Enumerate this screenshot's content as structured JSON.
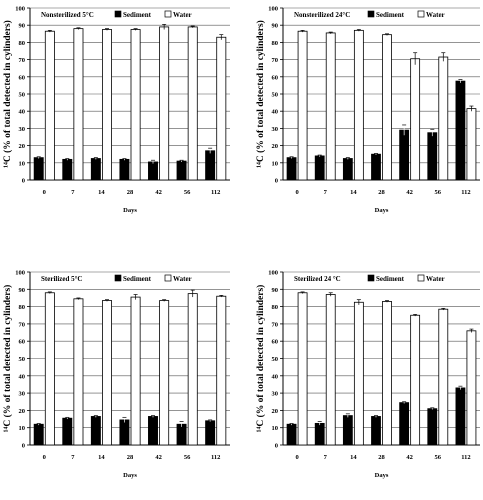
{
  "figure": {
    "y_axis_label": "¹⁴C (% of total detected in cylinders)",
    "x_axis_label": "Days",
    "legend": {
      "sediment": "Sediment",
      "water": "Water"
    }
  },
  "chart_data": [
    {
      "type": "bar",
      "title": "Nonsterilized 5°C",
      "categories": [
        "0",
        "7",
        "14",
        "28",
        "42",
        "56",
        "112"
      ],
      "series": [
        {
          "name": "Sediment",
          "values": [
            13,
            12,
            12.5,
            12,
            10.5,
            11,
            17
          ],
          "errors": [
            0.5,
            0.5,
            0.5,
            0.5,
            1,
            0.5,
            1.5
          ]
        },
        {
          "name": "Water",
          "values": [
            86.5,
            88,
            87.5,
            87.5,
            89,
            89,
            83
          ],
          "errors": [
            0.5,
            0.5,
            0.5,
            0.5,
            1.5,
            0.5,
            1.5
          ]
        }
      ],
      "xlabel": "Days",
      "ylabel": "¹⁴C (% of total detected in cylinders)",
      "ylim": [
        0,
        100
      ],
      "yticks": [
        0,
        10,
        20,
        30,
        40,
        50,
        60,
        70,
        80,
        90,
        100
      ],
      "grid": true,
      "legend_position": "top-right"
    },
    {
      "type": "bar",
      "title": "Nonsterilized 24°C",
      "categories": [
        "0",
        "7",
        "14",
        "28",
        "42",
        "56",
        "112"
      ],
      "series": [
        {
          "name": "Sediment",
          "values": [
            13,
            14,
            12.5,
            15,
            29,
            27.5,
            57.5
          ],
          "errors": [
            0.5,
            0.5,
            0.5,
            0.5,
            3,
            2,
            1
          ]
        },
        {
          "name": "Water",
          "values": [
            86.5,
            85.5,
            87,
            84.5,
            70.5,
            71.5,
            41.5
          ],
          "errors": [
            0.5,
            0.5,
            0.5,
            0.5,
            3.5,
            2.5,
            1.5
          ]
        }
      ],
      "xlabel": "Days",
      "ylabel": "¹⁴C (% of total detected in cylinders)",
      "ylim": [
        0,
        100
      ],
      "yticks": [
        0,
        10,
        20,
        30,
        40,
        50,
        60,
        70,
        80,
        90,
        100
      ],
      "grid": true,
      "legend_position": "top-right"
    },
    {
      "type": "bar",
      "title": "Sterilized 5°C",
      "categories": [
        "0",
        "7",
        "14",
        "28",
        "42",
        "56",
        "112"
      ],
      "series": [
        {
          "name": "Sediment",
          "values": [
            12,
            15.5,
            16.5,
            14.5,
            16.5,
            12,
            14
          ],
          "errors": [
            0.5,
            0.5,
            0.5,
            1.5,
            0.5,
            1.5,
            0.5
          ]
        },
        {
          "name": "Water",
          "values": [
            88,
            84.5,
            83.5,
            85.5,
            83.5,
            87.5,
            86
          ],
          "errors": [
            0.5,
            0.5,
            0.5,
            1.5,
            0.5,
            2,
            0.5
          ]
        }
      ],
      "xlabel": "Days",
      "ylabel": "¹⁴C (% of total detected in cylinders)",
      "ylim": [
        0,
        100
      ],
      "yticks": [
        0,
        10,
        20,
        30,
        40,
        50,
        60,
        70,
        80,
        90,
        100
      ],
      "grid": true,
      "legend_position": "top-right"
    },
    {
      "type": "bar",
      "title": "Sterilized 24 °C",
      "categories": [
        "0",
        "7",
        "14",
        "28",
        "42",
        "56",
        "112"
      ],
      "series": [
        {
          "name": "Sediment",
          "values": [
            12,
            12.5,
            17,
            16.5,
            24.5,
            21,
            33
          ],
          "errors": [
            0.5,
            1,
            1,
            0.5,
            0.5,
            0.5,
            1
          ]
        },
        {
          "name": "Water",
          "values": [
            88,
            87,
            82.5,
            83,
            75,
            78.5,
            66
          ],
          "errors": [
            0.5,
            1,
            1.5,
            0.5,
            0.5,
            0.5,
            1
          ]
        }
      ],
      "xlabel": "Days",
      "ylabel": "¹⁴C (% of total detected in cylinders)",
      "ylim": [
        0,
        100
      ],
      "yticks": [
        0,
        10,
        20,
        30,
        40,
        50,
        60,
        70,
        80,
        90,
        100
      ],
      "grid": true,
      "legend_position": "top-right"
    }
  ]
}
